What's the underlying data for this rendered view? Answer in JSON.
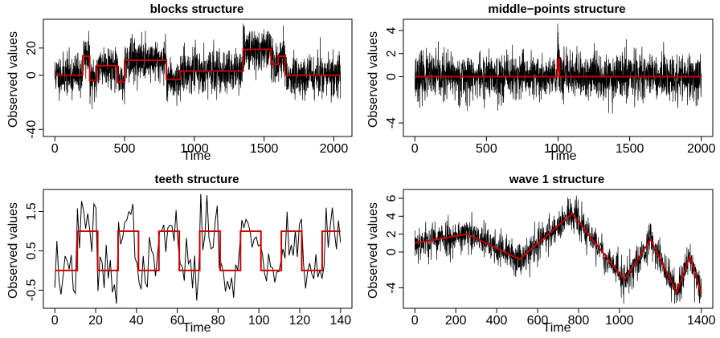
{
  "chart_data": [
    {
      "type": "line",
      "title": "blocks structure",
      "xlabel": "Time",
      "ylabel": "Observed values",
      "xlim": [
        0,
        2048
      ],
      "ylim": [
        -42,
        38
      ],
      "xticks": [
        0,
        500,
        1000,
        1500,
        2000
      ],
      "yticks": [
        -40,
        0,
        20
      ],
      "series": [
        {
          "role": "observed",
          "color": "#000000",
          "n": 2048,
          "noise_sd": 7.5,
          "seed": 11
        },
        {
          "role": "fit",
          "color": "#cc0000",
          "segments": [
            [
              0,
              200,
              0
            ],
            [
              200,
              250,
              14
            ],
            [
              250,
              300,
              -4
            ],
            [
              300,
              450,
              7
            ],
            [
              450,
              500,
              -5
            ],
            [
              500,
              800,
              11
            ],
            [
              800,
              900,
              -3
            ],
            [
              900,
              1350,
              3
            ],
            [
              1350,
              1550,
              19
            ],
            [
              1550,
              1600,
              8
            ],
            [
              1600,
              1650,
              14
            ],
            [
              1650,
              2048,
              0
            ]
          ]
        }
      ]
    },
    {
      "type": "line",
      "title": "middle−points structure",
      "xlabel": "Time",
      "ylabel": "Observed values",
      "xlim": [
        0,
        2000
      ],
      "ylim": [
        -4.8,
        4.6
      ],
      "xticks": [
        0,
        500,
        1000,
        1500,
        2000
      ],
      "yticks": [
        -4,
        0,
        2,
        4
      ],
      "series": [
        {
          "role": "observed",
          "color": "#000000",
          "n": 2000,
          "noise_sd": 1.0,
          "seed": 23
        },
        {
          "role": "fit",
          "color": "#cc0000",
          "segments": [
            [
              0,
              995,
              0
            ],
            [
              995,
              1010,
              1.5
            ],
            [
              1010,
              2000,
              0
            ]
          ]
        }
      ]
    },
    {
      "type": "line",
      "title": "teeth structure",
      "xlabel": "Time",
      "ylabel": "Observed values",
      "xlim": [
        0,
        140
      ],
      "ylim": [
        -0.85,
        1.95
      ],
      "xticks": [
        0,
        20,
        40,
        60,
        80,
        100,
        120,
        140
      ],
      "yticks": [
        -0.5,
        0.5,
        1.5
      ],
      "series": [
        {
          "role": "observed",
          "color": "#000000",
          "n": 140,
          "noise_sd": 0.4,
          "seed": 37
        },
        {
          "role": "fit",
          "color": "#cc0000",
          "segments": [
            [
              0,
              11,
              0
            ],
            [
              11,
              21,
              1
            ],
            [
              21,
              31,
              0
            ],
            [
              31,
              41,
              1
            ],
            [
              41,
              51,
              0
            ],
            [
              51,
              61,
              1
            ],
            [
              61,
              71,
              0
            ],
            [
              71,
              81,
              1
            ],
            [
              81,
              91,
              0
            ],
            [
              91,
              101,
              1
            ],
            [
              101,
              111,
              0
            ],
            [
              111,
              121,
              1
            ],
            [
              121,
              131,
              0
            ],
            [
              131,
              140,
              1
            ]
          ]
        }
      ]
    },
    {
      "type": "line",
      "title": "wave 1 structure",
      "xlabel": "Time",
      "ylabel": "Observed values",
      "xlim": [
        0,
        1400
      ],
      "ylim": [
        -5.8,
        6.5
      ],
      "xticks": [
        0,
        200,
        400,
        600,
        800,
        1000,
        1400
      ],
      "yticks": [
        -4,
        0,
        2,
        4,
        6
      ],
      "series": [
        {
          "role": "observed",
          "color": "#000000",
          "n": 1400,
          "noise_sd": 1.0,
          "seed": 53
        },
        {
          "role": "fit",
          "color": "#cc0000",
          "points": [
            [
              0,
              1
            ],
            [
              256,
              2
            ],
            [
              512,
              -0.8
            ],
            [
              768,
              4.3
            ],
            [
              1024,
              -3.1
            ],
            [
              1152,
              1.4
            ],
            [
              1280,
              -4.5
            ],
            [
              1344,
              -0.5
            ],
            [
              1400,
              -4.6
            ]
          ]
        }
      ]
    }
  ]
}
